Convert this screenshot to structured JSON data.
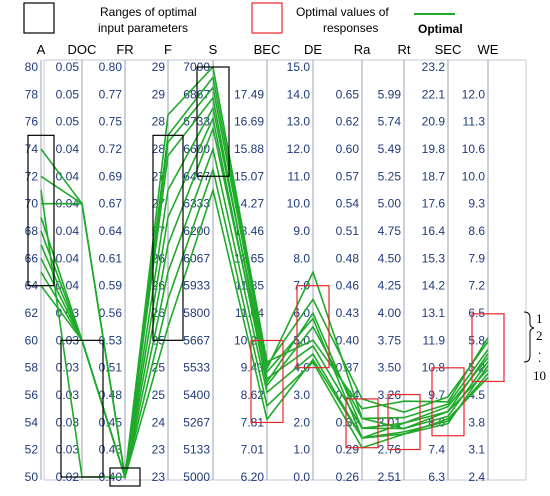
{
  "legend": {
    "ranges_label_line1": "Ranges of optimal",
    "ranges_label_line2": "input parameters",
    "values_label_line1": "Optimal values of",
    "values_label_line2": "responses",
    "optimal_label": "Optimal"
  },
  "colors": {
    "line": "#1faa2a",
    "range_box": "#000000",
    "value_box": "#e8262b",
    "tick_text": "#1f3a7a",
    "axis": "#9aa0b0"
  },
  "bracket": {
    "top": "1",
    "second": "2",
    "dots": ". . .",
    "bottom": "10"
  },
  "chart_data": {
    "type": "parallel-coordinates",
    "axes": [
      {
        "name": "A",
        "ticks": [
          "80",
          "78",
          "76",
          "74",
          "72",
          "70",
          "68",
          "66",
          "64",
          "62",
          "60",
          "58",
          "56",
          "54",
          "52",
          "50"
        ],
        "min": 50,
        "max": 80
      },
      {
        "name": "DOC",
        "ticks": [
          "0.05",
          "0.05",
          "0.05",
          "0.04",
          "0.04",
          "0.04",
          "0.04",
          "0.04",
          "0.04",
          "0.03",
          "0.03",
          "0.03",
          "0.03",
          "0.03",
          "0.03",
          "0.02"
        ],
        "min": 0.02,
        "max": 0.05
      },
      {
        "name": "FR",
        "ticks": [
          "0.80",
          "0.77",
          "0.75",
          "0.72",
          "0.69",
          "0.67",
          "0.64",
          "0.61",
          "0.59",
          "0.56",
          "0.53",
          "0.51",
          "0.48",
          "0.45",
          "0.43",
          "0.40"
        ],
        "min": 0.4,
        "max": 0.8
      },
      {
        "name": "F",
        "ticks": [
          "29",
          "29",
          "28",
          "28",
          "27",
          "27",
          "27",
          "26",
          "26",
          "26",
          "25",
          "25",
          "25",
          "24",
          "23",
          "23"
        ],
        "min": 23,
        "max": 29
      },
      {
        "name": "S",
        "ticks": [
          "7000",
          "6867",
          "6733",
          "6600",
          "6467",
          "6333",
          "6200",
          "6067",
          "5933",
          "5800",
          "5667",
          "5533",
          "5400",
          "5267",
          "5133",
          "5000"
        ],
        "min": 5000,
        "max": 7000
      },
      {
        "name": "BEC",
        "ticks": [
          "",
          "17.49",
          "16.69",
          "15.88",
          "15.07",
          "14.27",
          "13.46",
          "12.65",
          "11.85",
          "11.04",
          "10.23",
          "9.43",
          "8.62",
          "7.81",
          "7.01",
          "6.20"
        ],
        "min": 6.2,
        "max": 18.3
      },
      {
        "name": "DE",
        "ticks": [
          "15.0",
          "14.0",
          "13.0",
          "12.0",
          "11.0",
          "10.0",
          "9.0",
          "8.0",
          "7.0",
          "6.0",
          "5.0",
          "4.0",
          "3.0",
          "2.0",
          "1.0",
          "0.0"
        ],
        "min": 0,
        "max": 15
      },
      {
        "name": "Ra",
        "ticks": [
          "",
          "0.65",
          "0.62",
          "0.60",
          "0.57",
          "0.54",
          "0.51",
          "0.48",
          "0.46",
          "0.43",
          "0.40",
          "0.37",
          "0.34",
          "0.32",
          "0.29",
          "0.26"
        ],
        "min": 0.26,
        "max": 0.68
      },
      {
        "name": "Rt",
        "ticks": [
          "",
          "5.99",
          "5.74",
          "5.49",
          "5.25",
          "5.00",
          "4.75",
          "4.50",
          "4.25",
          "4.00",
          "3.75",
          "3.50",
          "3.26",
          "3.01",
          "2.76",
          "2.51"
        ],
        "min": 2.51,
        "max": 6.24
      },
      {
        "name": "SEC",
        "ticks": [
          "23.2",
          "22.1",
          "20.9",
          "19.8",
          "18.7",
          "17.6",
          "16.4",
          "15.3",
          "14.2",
          "13.1",
          "11.9",
          "10.8",
          "9.7",
          "8.6",
          "7.4",
          "6.3"
        ],
        "min": 6.3,
        "max": 23.2
      },
      {
        "name": "WE",
        "ticks": [
          "",
          "12.0",
          "11.3",
          "10.6",
          "10.0",
          "9.3",
          "8.6",
          "7.9",
          "7.2",
          "6.5",
          "5.8",
          "5.2",
          "4.5",
          "3.8",
          "3.1",
          "2.4"
        ],
        "min": 2.4,
        "max": 12.7
      }
    ],
    "series": [
      {
        "values": [
          74,
          0.04,
          0.4,
          28.3,
          7000,
          9.6,
          5.0,
          0.33,
          3.2,
          9.4,
          5.9
        ]
      },
      {
        "values": [
          72,
          0.04,
          0.4,
          28.0,
          6950,
          9.5,
          6.5,
          0.34,
          3.1,
          9.6,
          5.8
        ]
      },
      {
        "values": [
          70,
          0.04,
          0.4,
          27.9,
          6900,
          9.4,
          7.5,
          0.32,
          3.05,
          9.3,
          5.6
        ]
      },
      {
        "values": [
          69,
          0.03,
          0.4,
          27.7,
          6850,
          9.0,
          6.0,
          0.31,
          3.0,
          9.0,
          5.5
        ]
      },
      {
        "values": [
          67,
          0.03,
          0.4,
          27.2,
          6800,
          9.3,
          5.8,
          0.3,
          3.0,
          9.2,
          5.4
        ]
      },
      {
        "values": [
          66,
          0.03,
          0.4,
          26.8,
          6750,
          8.9,
          5.5,
          0.32,
          2.95,
          8.8,
          5.3
        ]
      },
      {
        "values": [
          65,
          0.03,
          0.4,
          26.4,
          6700,
          9.1,
          4.8,
          0.31,
          2.95,
          9.0,
          5.1
        ]
      },
      {
        "values": [
          68,
          0.03,
          0.4,
          26.0,
          6600,
          8.7,
          4.5,
          0.3,
          2.92,
          8.6,
          5.0
        ]
      },
      {
        "values": [
          64,
          0.03,
          0.4,
          25.6,
          6500,
          8.3,
          4.2,
          0.29,
          2.9,
          8.7,
          4.9
        ]
      },
      {
        "values": [
          71,
          0.02,
          0.4,
          25.2,
          6400,
          7.9,
          4.3,
          0.3,
          2.9,
          8.5,
          5.2
        ]
      }
    ],
    "ranges_of_optimal_input_parameters": {
      "A": [
        64,
        75
      ],
      "DOC": [
        0.02,
        0.03
      ],
      "FR": [
        0.4,
        0.4
      ],
      "F": [
        25,
        28
      ],
      "S": [
        6467,
        7000
      ]
    },
    "optimal_values_of_responses": {
      "BEC": [
        7.81,
        10.23
      ],
      "DE": [
        4.0,
        7.0
      ],
      "Ra": [
        0.29,
        0.34
      ],
      "Rt": [
        2.76,
        3.26
      ],
      "SEC": [
        8.0,
        10.8
      ],
      "WE": [
        4.8,
        6.5
      ]
    }
  }
}
